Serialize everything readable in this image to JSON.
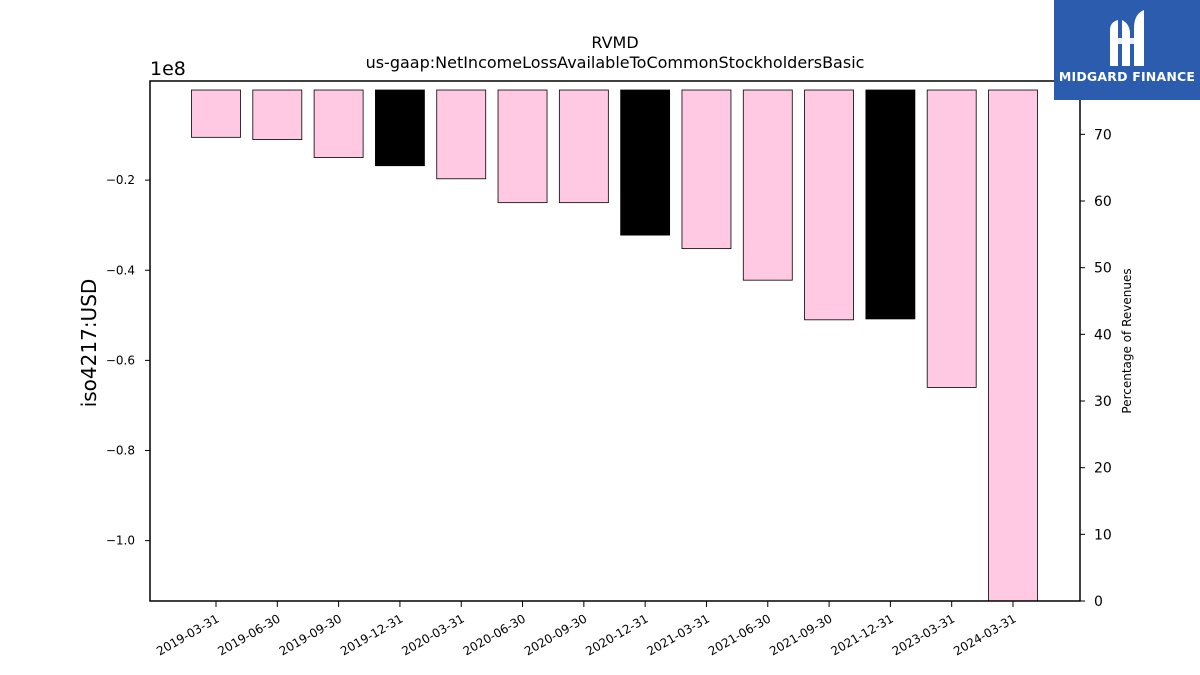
{
  "chart_data": {
    "type": "bar",
    "title": "RVMD",
    "subtitle": "us-gaap:NetIncomeLossAvailableToCommonStockholdersBasic",
    "ylabel": "iso4217:USD",
    "y_offset_label": "1e8",
    "y2label": "Percentage of Revenues",
    "categories": [
      "2019-03-31",
      "2019-06-30",
      "2019-09-30",
      "2019-12-31",
      "2020-03-31",
      "2020-06-30",
      "2020-09-30",
      "2020-12-31",
      "2021-03-31",
      "2021-06-30",
      "2021-09-30",
      "2021-12-31",
      "2023-03-31",
      "2024-03-31"
    ],
    "values": [
      -10500000,
      -11000000,
      -15000000,
      -16800000,
      -19700000,
      -25000000,
      -25000000,
      -32200000,
      -35200000,
      -42200000,
      -51000000,
      -50800000,
      -66000000,
      -114000000
    ],
    "bar_colors": [
      "#ffc9e4",
      "#ffc9e4",
      "#ffc9e4",
      "#000000",
      "#ffc9e4",
      "#ffc9e4",
      "#ffc9e4",
      "#000000",
      "#ffc9e4",
      "#ffc9e4",
      "#ffc9e4",
      "#000000",
      "#ffc9e4",
      "#ffc9e4"
    ],
    "ylim": [
      -113400000,
      2000000
    ],
    "yticks": [
      -0.2,
      -0.4,
      -0.6,
      -0.8,
      -1.0
    ],
    "y2lim": [
      0,
      78
    ],
    "y2ticks": [
      0,
      10,
      20,
      30,
      40,
      50,
      60,
      70
    ],
    "grid": false
  },
  "brand": {
    "name": "MIDGARD FINANCE",
    "color": "#2b5cae"
  }
}
